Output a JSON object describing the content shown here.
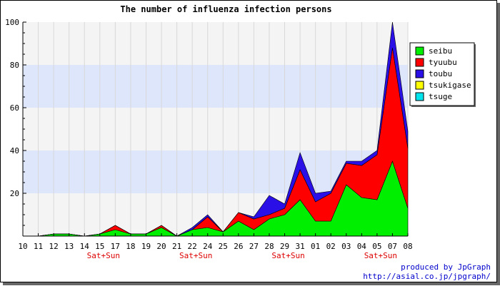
{
  "chart_data": {
    "type": "area",
    "stacked": true,
    "title": "The number of influenza infection persons",
    "xlabel": "",
    "ylabel": "",
    "categories": [
      "10",
      "11",
      "12",
      "13",
      "14",
      "15",
      "17",
      "18",
      "19",
      "20",
      "21",
      "22",
      "24",
      "25",
      "26",
      "27",
      "28",
      "29",
      "31",
      "01",
      "02",
      "03",
      "04",
      "05",
      "07",
      "08"
    ],
    "weekend_marks": [
      {
        "label": "Sat+Sun",
        "category": "15"
      },
      {
        "label": "Sat+Sun",
        "category": "22"
      },
      {
        "label": "Sat+Sun",
        "category": "29"
      },
      {
        "label": "Sat+Sun",
        "category": "05"
      }
    ],
    "ylim": [
      0,
      100
    ],
    "yticks": [
      20,
      40,
      60,
      80,
      100
    ],
    "y_minor_step": 5,
    "grid": true,
    "band_color": "#dde6fb",
    "legend_position": "right",
    "series": [
      {
        "name": "seibu",
        "color": "#00ee00",
        "values": [
          0,
          0,
          1,
          1,
          0,
          1,
          3,
          1,
          1,
          4,
          0,
          3,
          4,
          2,
          7,
          3,
          8,
          10,
          17,
          7,
          7,
          24,
          18,
          17,
          35,
          13
        ]
      },
      {
        "name": "tyuubu",
        "color": "#ff0000",
        "values": [
          0,
          0,
          0,
          0,
          0,
          0,
          2,
          0,
          0,
          1,
          0,
          0,
          5,
          0,
          4,
          5,
          2,
          3,
          14,
          9,
          13,
          10,
          15,
          21,
          53,
          28
        ]
      },
      {
        "name": "toubu",
        "color": "#2a10e6",
        "values": [
          0,
          0,
          0,
          0,
          0,
          0,
          0,
          0,
          0,
          0,
          0,
          1,
          1,
          0,
          0,
          1,
          9,
          2,
          8,
          4,
          1,
          1,
          2,
          2,
          12,
          8
        ]
      },
      {
        "name": "tsukigase",
        "color": "#ffff00",
        "values": [
          0,
          0,
          0,
          0,
          0,
          0,
          0,
          0,
          0,
          0,
          0,
          0,
          0,
          0,
          0,
          0,
          0,
          0,
          0,
          0,
          0,
          0,
          0,
          0,
          0,
          0
        ]
      },
      {
        "name": "tsuge",
        "color": "#00e5ee",
        "values": [
          0,
          0,
          0,
          0,
          0,
          0,
          0,
          0,
          0,
          0,
          0,
          0,
          0,
          0,
          0,
          0,
          0,
          0,
          0,
          0,
          0,
          0,
          0,
          0,
          0,
          0
        ]
      }
    ]
  },
  "footer": {
    "line1": "produced by JpGraph",
    "line2": "http://asial.co.jp/jpgraph/"
  }
}
